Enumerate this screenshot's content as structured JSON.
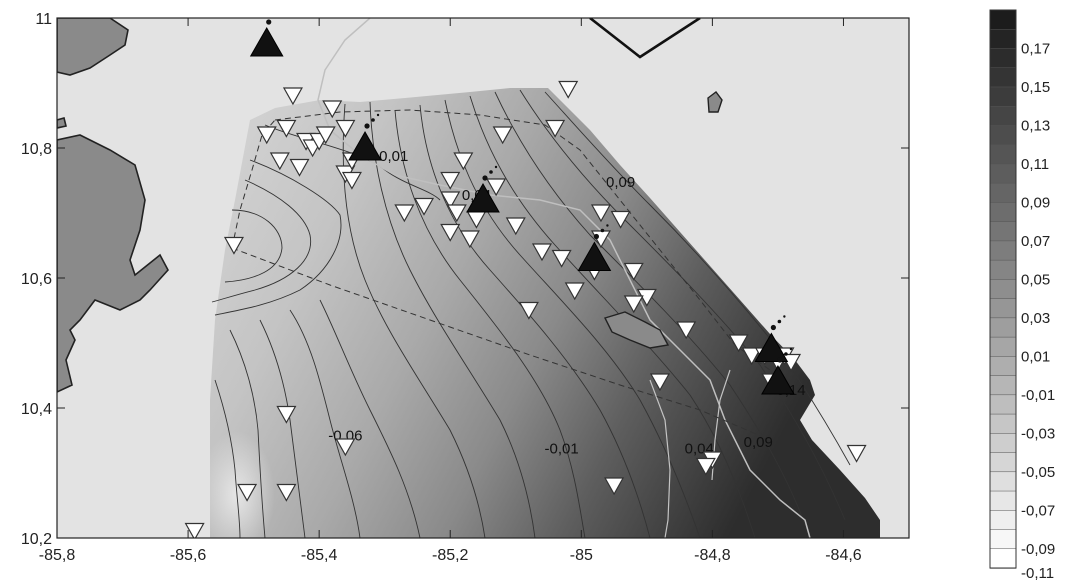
{
  "map": {
    "x_axis": {
      "min": -85.8,
      "max": -84.5,
      "ticks": [
        -85.8,
        -85.6,
        -85.4,
        -85.2,
        -85.0,
        -84.8,
        -84.6
      ],
      "tick_labels": [
        "-85,8",
        "-85,6",
        "-85,4",
        "-85,2",
        "-85",
        "-84,8",
        "-84,6"
      ]
    },
    "y_axis": {
      "min": 10.2,
      "max": 11.0,
      "ticks": [
        10.2,
        10.4,
        10.6,
        10.8,
        11.0
      ],
      "tick_labels": [
        "10,2",
        "10,4",
        "10,6",
        "10,8",
        "11"
      ]
    },
    "contour_labels": [
      {
        "text": "-0,06",
        "lon": -85.36,
        "lat": 10.35
      },
      {
        "text": "-0,01",
        "lon": -85.29,
        "lat": 10.78
      },
      {
        "text": "0,04",
        "lon": -85.16,
        "lat": 10.72
      },
      {
        "text": "0,09",
        "lon": -84.94,
        "lat": 10.74
      },
      {
        "text": "-0,01",
        "lon": -85.03,
        "lat": 10.33
      },
      {
        "text": "0,04",
        "lon": -84.82,
        "lat": 10.33
      },
      {
        "text": "0,09",
        "lon": -84.73,
        "lat": 10.34
      },
      {
        "text": "0,14",
        "lon": -84.68,
        "lat": 10.42
      }
    ],
    "volcanoes": [
      {
        "lon": -85.48,
        "lat": 10.96
      },
      {
        "lon": -85.33,
        "lat": 10.8
      },
      {
        "lon": -85.15,
        "lat": 10.72
      },
      {
        "lon": -84.98,
        "lat": 10.63
      },
      {
        "lon": -84.71,
        "lat": 10.49
      },
      {
        "lon": -84.7,
        "lat": 10.44
      }
    ],
    "stations": [
      [
        -85.44,
        10.88
      ],
      [
        -85.38,
        10.86
      ],
      [
        -85.48,
        10.82
      ],
      [
        -85.45,
        10.83
      ],
      [
        -85.42,
        10.81
      ],
      [
        -85.41,
        10.8
      ],
      [
        -85.4,
        10.81
      ],
      [
        -85.39,
        10.82
      ],
      [
        -85.36,
        10.83
      ],
      [
        -85.46,
        10.78
      ],
      [
        -85.43,
        10.77
      ],
      [
        -85.36,
        10.76
      ],
      [
        -85.35,
        10.75
      ],
      [
        -85.35,
        10.78
      ],
      [
        -85.53,
        10.65
      ],
      [
        -85.18,
        10.78
      ],
      [
        -85.2,
        10.75
      ],
      [
        -85.12,
        10.82
      ],
      [
        -85.02,
        10.89
      ],
      [
        -85.04,
        10.83
      ],
      [
        -85.27,
        10.7
      ],
      [
        -85.24,
        10.71
      ],
      [
        -85.2,
        10.72
      ],
      [
        -85.19,
        10.7
      ],
      [
        -85.16,
        10.69
      ],
      [
        -85.13,
        10.74
      ],
      [
        -85.2,
        10.67
      ],
      [
        -85.17,
        10.66
      ],
      [
        -85.1,
        10.68
      ],
      [
        -85.06,
        10.64
      ],
      [
        -85.03,
        10.63
      ],
      [
        -84.97,
        10.7
      ],
      [
        -84.94,
        10.69
      ],
      [
        -84.97,
        10.66
      ],
      [
        -84.98,
        10.61
      ],
      [
        -84.92,
        10.61
      ],
      [
        -84.9,
        10.57
      ],
      [
        -84.92,
        10.56
      ],
      [
        -85.01,
        10.58
      ],
      [
        -85.08,
        10.55
      ],
      [
        -84.84,
        10.52
      ],
      [
        -84.76,
        10.5
      ],
      [
        -84.74,
        10.48
      ],
      [
        -84.72,
        10.48
      ],
      [
        -84.7,
        10.47
      ],
      [
        -84.69,
        10.48
      ],
      [
        -84.68,
        10.47
      ],
      [
        -84.71,
        10.44
      ],
      [
        -84.88,
        10.44
      ],
      [
        -85.45,
        10.39
      ],
      [
        -85.36,
        10.34
      ],
      [
        -84.8,
        10.32
      ],
      [
        -84.81,
        10.31
      ],
      [
        -84.58,
        10.33
      ],
      [
        -84.95,
        10.28
      ],
      [
        -85.51,
        10.27
      ],
      [
        -85.45,
        10.27
      ],
      [
        -85.59,
        10.21
      ]
    ],
    "colorbar": {
      "labels": [
        "0,17",
        "0,15",
        "0,13",
        "0,11",
        "0,09",
        "0,07",
        "0,05",
        "0,03",
        "0,01",
        "-0,01",
        "-0,03",
        "-0,05",
        "-0,07",
        "-0,09",
        "-0,11"
      ],
      "bands": 29
    },
    "colors": {
      "land": "#8c8c8c",
      "background": "#e3e3e3",
      "marker_fill": "#ffffff",
      "volcano": "#111111"
    }
  }
}
